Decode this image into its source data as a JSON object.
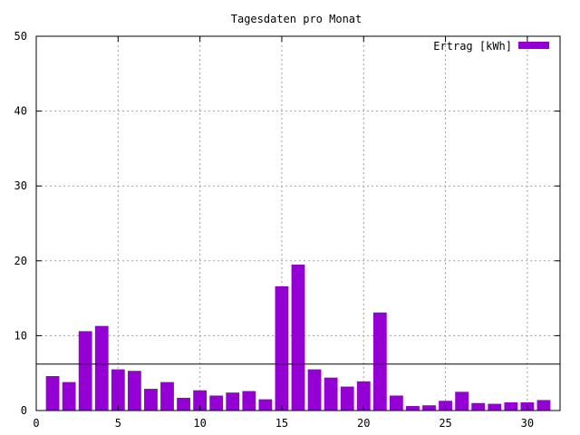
{
  "chart_data": {
    "type": "bar",
    "title": "Tagesdaten pro Monat",
    "xlabel": "",
    "ylabel": "",
    "xlim": [
      0,
      32
    ],
    "ylim": [
      0,
      50
    ],
    "x_ticks": [
      0,
      5,
      10,
      15,
      20,
      25,
      30
    ],
    "y_ticks": [
      0,
      10,
      20,
      30,
      40,
      50
    ],
    "grid": true,
    "legend_position": "top-right",
    "reference_line": 6.2,
    "series": [
      {
        "name": "Ertrag [kWh]",
        "color": "#9400d3",
        "x": [
          1,
          2,
          3,
          4,
          5,
          6,
          7,
          8,
          9,
          10,
          11,
          12,
          13,
          14,
          15,
          16,
          17,
          18,
          19,
          20,
          21,
          22,
          23,
          24,
          25,
          26,
          27,
          28,
          29,
          30,
          31
        ],
        "values": [
          4.6,
          3.8,
          10.6,
          11.3,
          5.5,
          5.3,
          2.9,
          3.8,
          1.7,
          2.7,
          2.0,
          2.4,
          2.6,
          1.5,
          16.6,
          19.5,
          5.5,
          4.4,
          3.2,
          3.9,
          13.1,
          2.0,
          0.6,
          0.7,
          1.3,
          2.5,
          1.0,
          0.9,
          1.1,
          1.1,
          1.4
        ]
      }
    ]
  }
}
